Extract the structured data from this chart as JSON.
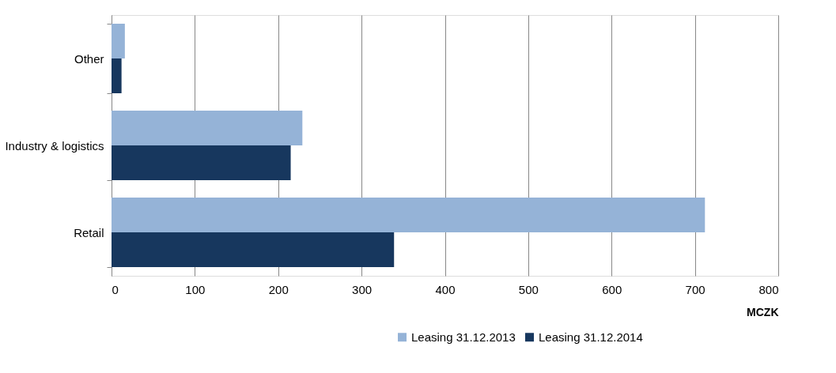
{
  "chart_data": {
    "type": "bar",
    "orientation": "horizontal",
    "categories": [
      "Other",
      "Industry & logistics",
      "Retail"
    ],
    "series": [
      {
        "name": "Leasing 31.12.2013",
        "color": "#95b3d7",
        "values": [
          16,
          229,
          712
        ]
      },
      {
        "name": "Leasing 31.12.2014",
        "color": "#17375e",
        "values": [
          12,
          215,
          339
        ]
      }
    ],
    "xlabel": "MCZK",
    "xlim": [
      0,
      800
    ],
    "xticks": [
      0,
      100,
      200,
      300,
      400,
      500,
      600,
      700,
      800
    ],
    "grid": "x",
    "legend": "bottom"
  }
}
